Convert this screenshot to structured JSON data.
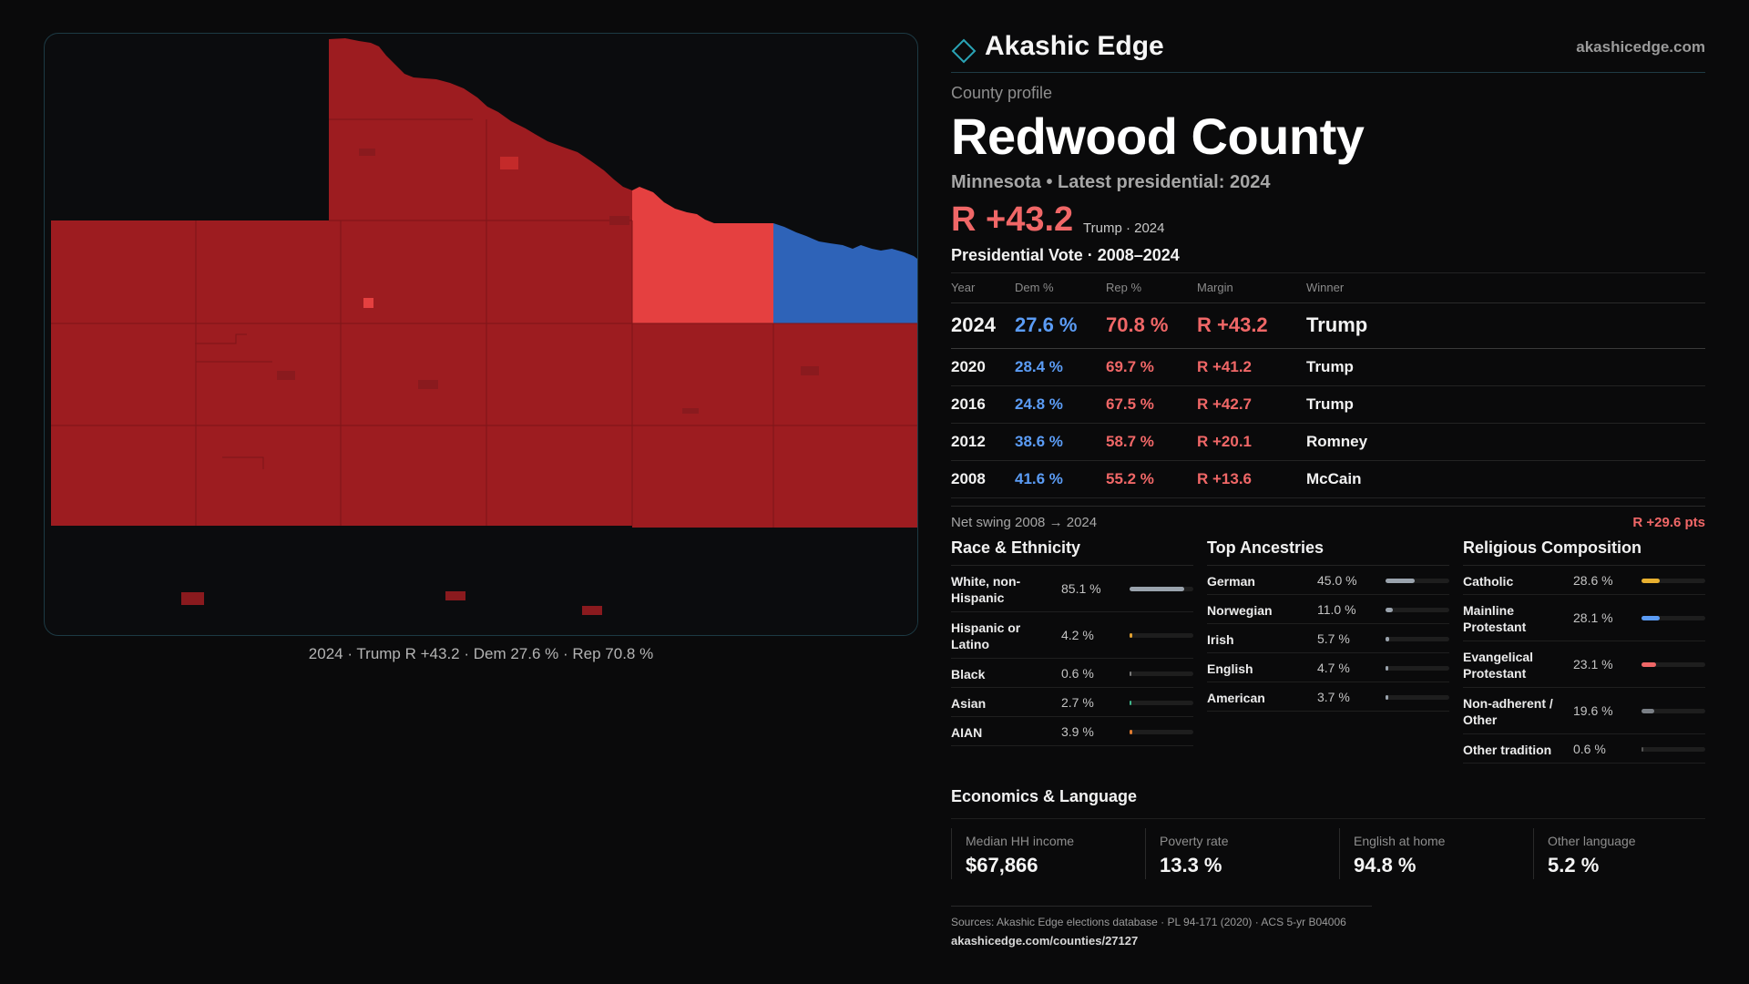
{
  "map": {
    "caption": "2024 · Trump R +43.2 · Dem 27.6 % · Rep 70.8 %",
    "colors": {
      "strong_rep": "#9d1c20",
      "lean_rep": "#e54040",
      "dem": "#2e63b8",
      "boundary": "#7d1518"
    }
  },
  "header": {
    "brand": "Akashic Edge",
    "site": "akashicedge.com",
    "logo_icon": "diamond-icon"
  },
  "profile": {
    "eyebrow": "County profile",
    "county": "Redwood County",
    "subline": "Minnesota • Latest presidential: 2024",
    "margin": "R +43.2",
    "margin_note": "Trump · 2024"
  },
  "votes": {
    "title": "Presidential Vote · 2008–2024",
    "headers": [
      "Year",
      "Dem %",
      "Rep %",
      "Margin",
      "Winner"
    ],
    "rows": [
      {
        "year": "2024",
        "dem": "27.6 %",
        "rep": "70.8 %",
        "margin": "R +43.2",
        "winner": "Trump"
      },
      {
        "year": "2020",
        "dem": "28.4 %",
        "rep": "69.7 %",
        "margin": "R +41.2",
        "winner": "Trump"
      },
      {
        "year": "2016",
        "dem": "24.8 %",
        "rep": "67.5 %",
        "margin": "R +42.7",
        "winner": "Trump"
      },
      {
        "year": "2012",
        "dem": "38.6 %",
        "rep": "58.7 %",
        "margin": "R +20.1",
        "winner": "Romney"
      },
      {
        "year": "2008",
        "dem": "41.6 %",
        "rep": "55.2 %",
        "margin": "R +13.6",
        "winner": "McCain"
      }
    ],
    "swing_label": "Net swing 2008 → 2024",
    "swing_value": "R +29.6 pts"
  },
  "race": {
    "title": "Race & Ethnicity",
    "items": [
      {
        "name": "White, non-Hispanic",
        "pct": "85.1 %",
        "value": 85.1,
        "color": "#9aa3ad"
      },
      {
        "name": "Hispanic or Latino",
        "pct": "4.2 %",
        "value": 4.2,
        "color": "#e0a030"
      },
      {
        "name": "Black",
        "pct": "0.6 %",
        "value": 0.6,
        "color": "#7a7a7a"
      },
      {
        "name": "Asian",
        "pct": "2.7 %",
        "value": 2.7,
        "color": "#3fb68b"
      },
      {
        "name": "AIAN",
        "pct": "3.9 %",
        "value": 3.9,
        "color": "#e07b30"
      }
    ]
  },
  "ancestry": {
    "title": "Top Ancestries",
    "items": [
      {
        "name": "German",
        "pct": "45.0 %",
        "value": 45.0,
        "color": "#9aa3ad"
      },
      {
        "name": "Norwegian",
        "pct": "11.0 %",
        "value": 11.0,
        "color": "#9aa3ad"
      },
      {
        "name": "Irish",
        "pct": "5.7 %",
        "value": 5.7,
        "color": "#9aa3ad"
      },
      {
        "name": "English",
        "pct": "4.7 %",
        "value": 4.7,
        "color": "#9aa3ad"
      },
      {
        "name": "American",
        "pct": "3.7 %",
        "value": 3.7,
        "color": "#9aa3ad"
      }
    ]
  },
  "religion": {
    "title": "Religious Composition",
    "items": [
      {
        "name": "Catholic",
        "pct": "28.6 %",
        "value": 28.6,
        "color": "#e8b030"
      },
      {
        "name": "Mainline Protestant",
        "pct": "28.1 %",
        "value": 28.1,
        "color": "#5b9cf5"
      },
      {
        "name": "Evangelical Protestant",
        "pct": "23.1 %",
        "value": 23.1,
        "color": "#f06767"
      },
      {
        "name": "Non-adherent / Other",
        "pct": "19.6 %",
        "value": 19.6,
        "color": "#7a7f86"
      },
      {
        "name": "Other tradition",
        "pct": "0.6 %",
        "value": 0.6,
        "color": "#555555"
      }
    ]
  },
  "economics": {
    "title": "Economics & Language",
    "cells": [
      {
        "label": "Median HH income",
        "value": "$67,866"
      },
      {
        "label": "Poverty rate",
        "value": "13.3 %"
      },
      {
        "label": "English at home",
        "value": "94.8 %"
      },
      {
        "label": "Other language",
        "value": "5.2 %"
      }
    ]
  },
  "sources": {
    "line1": "Sources: Akashic Edge elections database · PL 94-171 (2020) · ACS 5-yr B04006",
    "line2": "akashicedge.com/counties/27127"
  }
}
